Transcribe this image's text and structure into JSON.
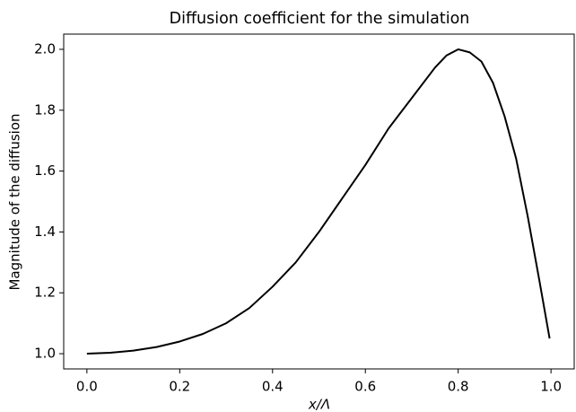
{
  "chart_data": {
    "type": "line",
    "title": "Diffusion coefficient for the simulation",
    "xlabel": "x/Λ",
    "ylabel": "Magnitude of the diffusion",
    "x": [
      0,
      0.05,
      0.1,
      0.15,
      0.2,
      0.25,
      0.3,
      0.35,
      0.4,
      0.45,
      0.5,
      0.55,
      0.6,
      0.65,
      0.7,
      0.75,
      0.775,
      0.8,
      0.825,
      0.85,
      0.875,
      0.9,
      0.925,
      0.95,
      0.975,
      0.997
    ],
    "values": [
      1.0,
      1.003,
      1.01,
      1.022,
      1.04,
      1.065,
      1.1,
      1.15,
      1.22,
      1.3,
      1.4,
      1.51,
      1.62,
      1.74,
      1.84,
      1.94,
      1.98,
      2.0,
      1.99,
      1.96,
      1.89,
      1.78,
      1.64,
      1.45,
      1.24,
      1.05
    ],
    "color": "#000000",
    "xlim": [
      -0.05,
      1.05
    ],
    "ylim": [
      0.95,
      2.05
    ],
    "xticks": [
      {
        "value": 0,
        "label": "0.0"
      },
      0.2,
      0.4,
      0.6,
      0.8,
      {
        "value": 1,
        "label": "1.0"
      }
    ],
    "yticks": [
      {
        "value": 1,
        "label": "1.0"
      },
      1.2,
      1.4,
      1.6,
      1.8,
      {
        "value": 2,
        "label": "2.0"
      }
    ]
  }
}
